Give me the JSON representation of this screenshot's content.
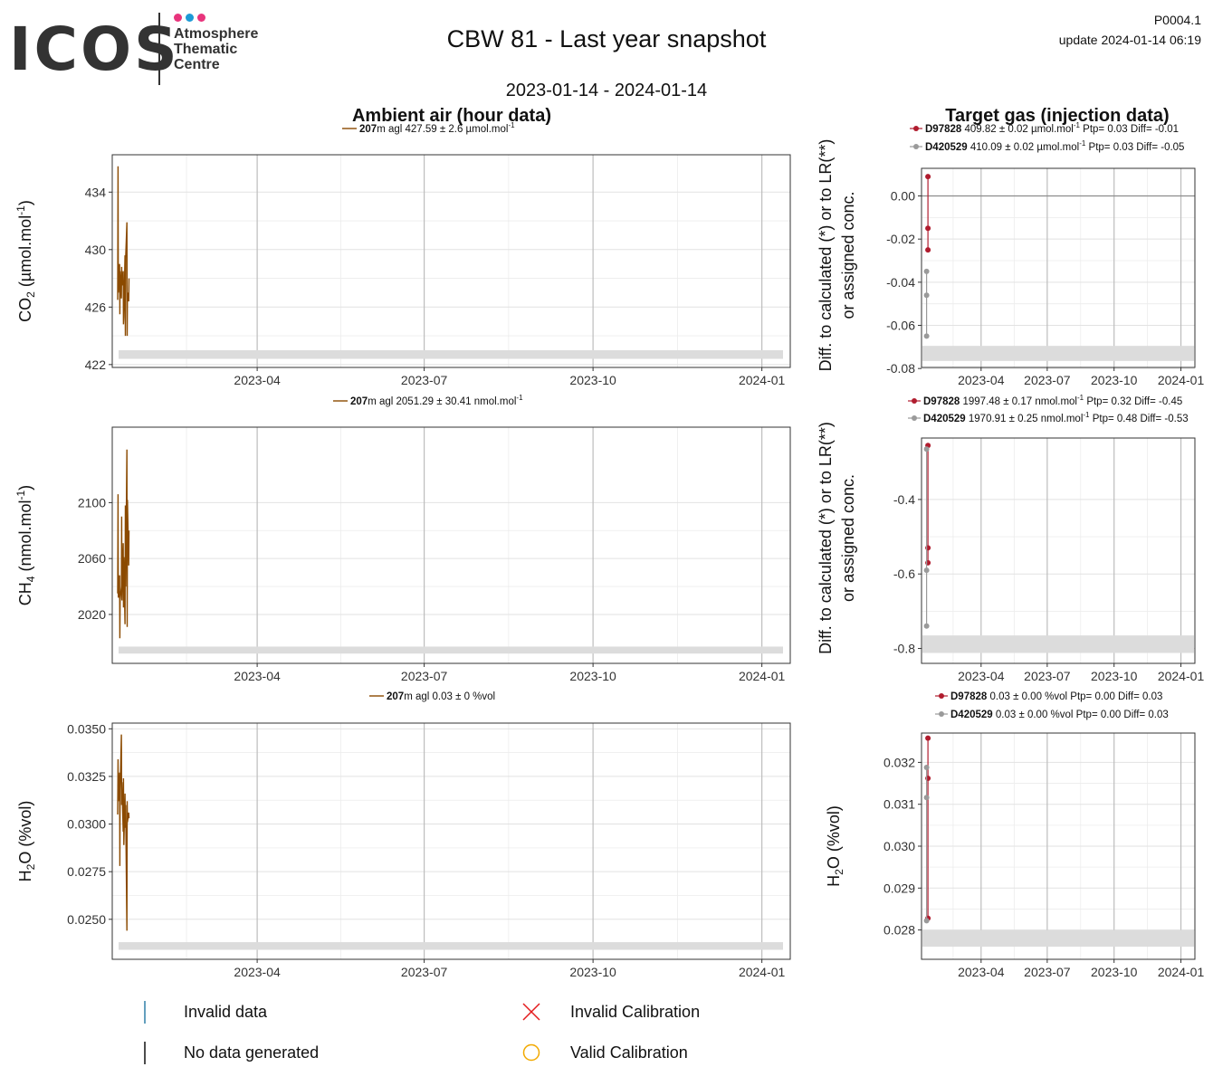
{
  "header": {
    "logo_word": "ICOS",
    "logo_lines": [
      "Atmosphere",
      "Thematic",
      "Centre"
    ],
    "logo_dot_colors": [
      "#e8347c",
      "#1d9ad6",
      "#e8347c"
    ],
    "title": "CBW 81 - Last year snapshot",
    "subtitle": "2023-01-14 - 2024-01-14",
    "code": "P0004.1",
    "update": "update  2024-01-14 06:19",
    "ambient_heading": "Ambient air (hour data)",
    "target_heading": "Target gas (injection data)"
  },
  "colors": {
    "ambient_line": "#8B4A00",
    "d97828": "#b01c2e",
    "d420529": "#9a9a9a",
    "gray_band": "#dcdcdc",
    "invalid_data": "#2f7fa8",
    "invalid_calibration": "#e41a1c",
    "valid_calibration": "#f2a900"
  },
  "legend": {
    "items": [
      {
        "label": "Invalid data",
        "icon": "vertical-line-teal"
      },
      {
        "label": "Invalid Calibration",
        "icon": "x-mark-red"
      },
      {
        "label": "No data generated",
        "icon": "vertical-line-black"
      },
      {
        "label": "Valid Calibration",
        "icon": "circle-orange"
      }
    ]
  },
  "chart_data": [
    {
      "id": "ambient-co2",
      "type": "line",
      "panel": "Ambient air (hour data)",
      "ylabel_main": "CO",
      "ylabel_sub": "2",
      "ylabel_unit": " (µmol.mol",
      "ylabel_sup": "-1",
      "ylabel_end": ")",
      "ylim": [
        421.8,
        436.6
      ],
      "yticks": [
        422,
        426,
        430,
        434
      ],
      "ytick_labels": [
        "422",
        "426",
        "430",
        "434"
      ],
      "xlim": [
        "2023-01-14",
        "2024-01-14"
      ],
      "xticks": [
        "2023-04-01",
        "2023-07-01",
        "2023-10-01",
        "2024-01-01"
      ],
      "xtick_labels": [
        "2023-04",
        "2023-07",
        "2023-10",
        "2024-01"
      ],
      "series_label": {
        "height": "207",
        "text": "m agl 427.59 ± 2.6 µmol.mol",
        "sup": "-1"
      },
      "x": [
        "2023-01-15",
        "2023-01-15",
        "2023-01-15",
        "2023-01-16",
        "2023-01-16",
        "2023-01-16",
        "2023-01-17",
        "2023-01-17",
        "2023-01-17",
        "2023-01-18",
        "2023-01-18",
        "2023-01-18",
        "2023-01-19",
        "2023-01-19",
        "2023-01-19",
        "2023-01-20",
        "2023-01-20",
        "2023-01-20",
        "2023-01-21",
        "2023-01-21"
      ],
      "values": [
        426.5,
        435.8,
        427,
        429,
        425.5,
        428.5,
        426.6,
        428.8,
        427.5,
        428.5,
        424.8,
        425.3,
        429.6,
        424,
        429.4,
        431.9,
        424,
        427,
        426.4,
        428
      ],
      "band": [
        422.4,
        423
      ]
    },
    {
      "id": "ambient-ch4",
      "type": "line",
      "panel": "Ambient air (hour data)",
      "ylabel_main": "CH",
      "ylabel_sub": "4",
      "ylabel_unit": " (nmol.mol",
      "ylabel_sup": "-1",
      "ylabel_end": ")",
      "ylim": [
        1985,
        2154
      ],
      "yticks": [
        2020,
        2060,
        2100
      ],
      "ytick_labels": [
        "2020",
        "2060",
        "2100"
      ],
      "xlim": [
        "2023-01-14",
        "2024-01-14"
      ],
      "xticks": [
        "2023-04-01",
        "2023-07-01",
        "2023-10-01",
        "2024-01-01"
      ],
      "xtick_labels": [
        "2023-04",
        "2023-07",
        "2023-10",
        "2024-01"
      ],
      "series_label": {
        "height": "207",
        "text": "m agl 2051.29 ± 30.41 nmol.mol",
        "sup": "-1"
      },
      "x": [
        "2023-01-15",
        "2023-01-15",
        "2023-01-15",
        "2023-01-16",
        "2023-01-16",
        "2023-01-16",
        "2023-01-17",
        "2023-01-17",
        "2023-01-17",
        "2023-01-18",
        "2023-01-18",
        "2023-01-18",
        "2023-01-19",
        "2023-01-19",
        "2023-01-19",
        "2023-01-20",
        "2023-01-20",
        "2023-01-20",
        "2023-01-21",
        "2023-01-21"
      ],
      "values": [
        2035,
        2106,
        2032,
        2048,
        2003,
        2030,
        2040,
        2090,
        2030,
        2071,
        2025,
        2061,
        2013,
        2098,
        2040,
        2138,
        2011,
        2102,
        2055,
        2080
      ],
      "band": [
        1992,
        1997
      ]
    },
    {
      "id": "ambient-h2o",
      "type": "line",
      "panel": "Ambient air (hour data)",
      "ylabel_main": "H",
      "ylabel_sub": "2",
      "ylabel_unit": "O (%vol)",
      "ylabel_sup": "",
      "ylabel_end": "",
      "ylim": [
        0.0229,
        0.0353
      ],
      "yticks": [
        0.025,
        0.0275,
        0.03,
        0.0325,
        0.035
      ],
      "ytick_labels": [
        "0.0250",
        "0.0275",
        "0.0300",
        "0.0325",
        "0.0350"
      ],
      "xlim": [
        "2023-01-14",
        "2024-01-14"
      ],
      "xticks": [
        "2023-04-01",
        "2023-07-01",
        "2023-10-01",
        "2024-01-01"
      ],
      "xtick_labels": [
        "2023-04",
        "2023-07",
        "2023-10",
        "2024-01"
      ],
      "series_label": {
        "height": "207",
        "text": "m agl 0.03 ± 0 %vol",
        "sup": ""
      },
      "x": [
        "2023-01-15",
        "2023-01-15",
        "2023-01-15",
        "2023-01-16",
        "2023-01-16",
        "2023-01-16",
        "2023-01-17",
        "2023-01-17",
        "2023-01-17",
        "2023-01-18",
        "2023-01-18",
        "2023-01-18",
        "2023-01-19",
        "2023-01-19",
        "2023-01-19",
        "2023-01-20",
        "2023-01-20",
        "2023-01-20",
        "2023-01-21",
        "2023-01-21"
      ],
      "values": [
        0.0305,
        0.0334,
        0.0312,
        0.0327,
        0.0278,
        0.0318,
        0.0347,
        0.031,
        0.0322,
        0.0296,
        0.0324,
        0.0289,
        0.0316,
        0.0298,
        0.031,
        0.0244,
        0.0312,
        0.0301,
        0.0306,
        0.0303
      ],
      "band": [
        0.0234,
        0.0238
      ]
    },
    {
      "id": "target-co2",
      "type": "line",
      "panel": "Target gas (injection data)",
      "ylabel_lines": [
        "Diff. to calculated (*) or to LR(**)",
        "or assigned conc."
      ],
      "ylim": [
        -0.0795,
        0.0128
      ],
      "yticks": [
        -0.08,
        -0.06,
        -0.04,
        -0.02,
        0
      ],
      "ytick_labels": [
        "-0.08",
        "-0.06",
        "-0.04",
        "-0.02",
        "0.00"
      ],
      "zero_line": true,
      "xlim": [
        "2023-01-14",
        "2024-01-14"
      ],
      "xticks": [
        "2023-04-01",
        "2023-07-01",
        "2023-10-01",
        "2024-01-01"
      ],
      "xtick_labels": [
        "2023-04",
        "2023-07",
        "2023-10",
        "2024-01"
      ],
      "band": [
        -0.0765,
        -0.0695
      ],
      "series": [
        {
          "name": "D97828",
          "text": "409.82 ± 0.02 µmol.mol",
          "sup": "-1",
          "tail": " Ptp= 0.03 Diff= -0.01",
          "x": [
            "2023-01-16",
            "2023-01-16",
            "2023-01-16"
          ],
          "values": [
            0.009,
            -0.015,
            -0.025
          ]
        },
        {
          "name": "D420529",
          "text": "410.09 ± 0.02 µmol.mol",
          "sup": "-1",
          "tail": " Ptp= 0.03 Diff= -0.05",
          "x": [
            "2023-01-16",
            "2023-01-16",
            "2023-01-16"
          ],
          "values": [
            -0.035,
            -0.046,
            -0.065
          ]
        }
      ]
    },
    {
      "id": "target-ch4",
      "type": "line",
      "panel": "Target gas (injection data)",
      "ylabel_lines": [
        "Diff. to calculated (*) or to LR(**)",
        "or assigned conc."
      ],
      "ylim": [
        -0.84,
        -0.235
      ],
      "yticks": [
        -0.8,
        -0.6,
        -0.4
      ],
      "ytick_labels": [
        "-0.8",
        "-0.6",
        "-0.4"
      ],
      "zero_line": false,
      "xlim": [
        "2023-01-14",
        "2024-01-14"
      ],
      "xticks": [
        "2023-04-01",
        "2023-07-01",
        "2023-10-01",
        "2024-01-01"
      ],
      "xtick_labels": [
        "2023-04",
        "2023-07",
        "2023-10",
        "2024-01"
      ],
      "band": [
        -0.812,
        -0.765
      ],
      "series": [
        {
          "name": "D97828",
          "text": "1997.48 ± 0.17 nmol.mol",
          "sup": "-1",
          "tail": " Ptp= 0.32 Diff= -0.45",
          "x": [
            "2023-01-16",
            "2023-01-16",
            "2023-01-16"
          ],
          "values": [
            -0.255,
            -0.53,
            -0.57
          ]
        },
        {
          "name": "D420529",
          "text": "1970.91 ± 0.25 nmol.mol",
          "sup": "-1",
          "tail": " Ptp= 0.48 Diff= -0.53",
          "x": [
            "2023-01-16",
            "2023-01-16",
            "2023-01-16"
          ],
          "values": [
            -0.265,
            -0.59,
            -0.74
          ]
        }
      ]
    },
    {
      "id": "target-h2o",
      "type": "line",
      "panel": "Target gas (injection data)",
      "ylabel_main": "H",
      "ylabel_sub": "2",
      "ylabel_unit": "O (%vol)",
      "ylabel_sup": "",
      "ylabel_end": "",
      "ylim": [
        0.0273,
        0.0327
      ],
      "yticks": [
        0.028,
        0.029,
        0.03,
        0.031,
        0.032
      ],
      "ytick_labels": [
        "0.028",
        "0.029",
        "0.030",
        "0.031",
        "0.032"
      ],
      "zero_line": false,
      "xlim": [
        "2023-01-14",
        "2024-01-14"
      ],
      "xticks": [
        "2023-04-01",
        "2023-07-01",
        "2023-10-01",
        "2024-01-01"
      ],
      "xtick_labels": [
        "2023-04",
        "2023-07",
        "2023-10",
        "2024-01"
      ],
      "band": [
        0.0276,
        0.028
      ],
      "series": [
        {
          "name": "D97828",
          "text": "0.03 ± 0.00 %vol",
          "sup": "",
          "tail": " Ptp= 0.00 Diff= 0.03",
          "x": [
            "2023-01-16",
            "2023-01-16",
            "2023-01-16"
          ],
          "values": [
            0.03258,
            0.03162,
            0.02828
          ]
        },
        {
          "name": "D420529",
          "text": "0.03 ± 0.00 %vol",
          "sup": "",
          "tail": " Ptp= 0.00 Diff= 0.03",
          "x": [
            "2023-01-16",
            "2023-01-16",
            "2023-01-16"
          ],
          "values": [
            0.03188,
            0.03116,
            0.02822
          ]
        }
      ]
    }
  ]
}
